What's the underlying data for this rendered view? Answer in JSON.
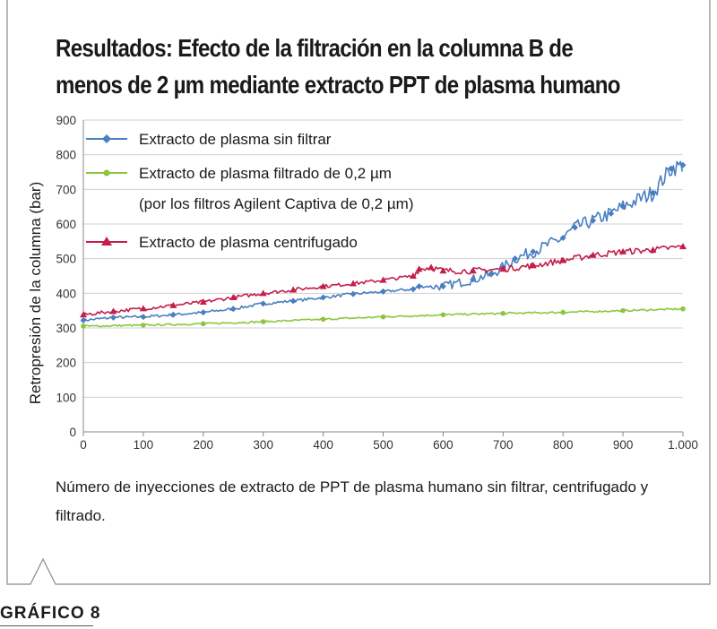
{
  "title_line1": "Resultados: Efecto de la filtración en la columna B de",
  "title_line2": "menos de 2 µm mediante extracto PPT de plasma humano",
  "caption": "Número de inyecciones de extracto de PPT de plasma humano sin filtrar, centrifugado y filtrado.",
  "figure_label": "GRÁFICO 8",
  "colors": {
    "blue": "#4a7ec2",
    "green": "#8cc63f",
    "red": "#c41e4a",
    "grid": "#d0d0d0"
  },
  "chart_data": {
    "type": "line",
    "title": "Resultados: Efecto de la filtración en la columna B de menos de 2 µm mediante extracto PPT de plasma humano",
    "xlabel": "",
    "ylabel": "Retropresión de la columna (bar)",
    "xlim": [
      0,
      1000
    ],
    "ylim": [
      0,
      900
    ],
    "x_ticks": [
      "0",
      "100",
      "200",
      "300",
      "400",
      "500",
      "600",
      "700",
      "800",
      "900",
      "1.000"
    ],
    "y_ticks": [
      "0",
      "100",
      "200",
      "300",
      "400",
      "500",
      "600",
      "700",
      "800",
      "900"
    ],
    "grid": "horizontal",
    "legend_position": "top-left",
    "series": [
      {
        "name": "Extracto de plasma sin filtrar",
        "color": "#4a7ec2",
        "marker": "diamond",
        "x": [
          0,
          50,
          100,
          150,
          200,
          250,
          300,
          350,
          400,
          450,
          500,
          550,
          560,
          600,
          650,
          680,
          700,
          720,
          750,
          800,
          820,
          850,
          880,
          900,
          950,
          980,
          1000
        ],
        "y": [
          322,
          330,
          332,
          338,
          345,
          355,
          370,
          378,
          388,
          398,
          405,
          412,
          420,
          420,
          440,
          455,
          475,
          500,
          520,
          560,
          590,
          610,
          630,
          650,
          690,
          760,
          770
        ]
      },
      {
        "name": "Extracto de plasma filtrado de 0,2 µm",
        "name_line2": "(por los filtros Agilent Captiva de 0,2 µm)",
        "color": "#8cc63f",
        "marker": "circle",
        "x": [
          0,
          100,
          200,
          300,
          400,
          500,
          600,
          700,
          800,
          900,
          1000
        ],
        "y": [
          305,
          308,
          312,
          318,
          325,
          332,
          338,
          342,
          345,
          350,
          355
        ]
      },
      {
        "name": "Extracto de plasma centrifugado",
        "color": "#c41e4a",
        "marker": "triangle",
        "x": [
          0,
          50,
          100,
          150,
          200,
          250,
          300,
          350,
          400,
          450,
          500,
          550,
          560,
          580,
          600,
          650,
          700,
          750,
          800,
          850,
          900,
          950,
          1000
        ],
        "y": [
          338,
          348,
          356,
          365,
          375,
          388,
          400,
          410,
          420,
          428,
          438,
          450,
          470,
          475,
          465,
          465,
          470,
          480,
          495,
          510,
          520,
          525,
          535
        ]
      }
    ]
  }
}
